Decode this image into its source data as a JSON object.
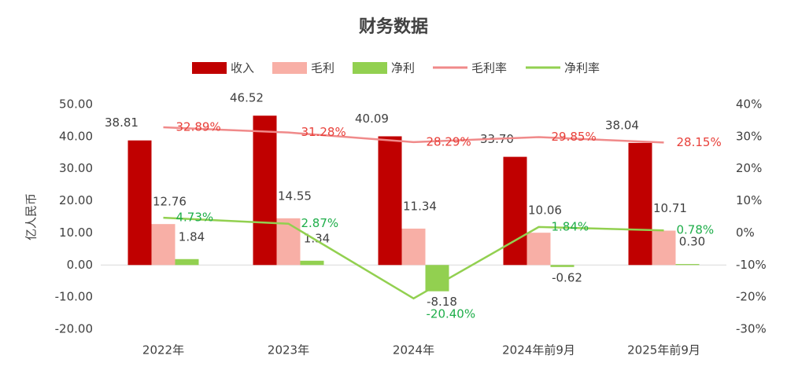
{
  "chart_data": {
    "type": "bar-line",
    "title": "财务数据",
    "y_label": "亿人民币",
    "categories": [
      "2022年",
      "2023年",
      "2024年",
      "2024年前9月",
      "2025年前9月"
    ],
    "series": [
      {
        "name": "收入",
        "type": "bar",
        "color": "#c00000",
        "values": [
          38.81,
          46.52,
          40.09,
          33.7,
          38.04
        ],
        "value_labels": [
          "38.81",
          "46.52",
          "40.09",
          "33.70",
          "38.04"
        ]
      },
      {
        "name": "毛利",
        "type": "bar",
        "color": "#f8afa6",
        "values": [
          12.76,
          14.55,
          11.34,
          10.06,
          10.71
        ],
        "value_labels": [
          "12.76",
          "14.55",
          "11.34",
          "10.06",
          "10.71"
        ]
      },
      {
        "name": "净利",
        "type": "bar",
        "color": "#92d050",
        "values": [
          1.84,
          1.34,
          -8.18,
          -0.62,
          0.3
        ],
        "value_labels": [
          "1.84",
          "1.34",
          "-8.18",
          "-0.62",
          "0.30"
        ]
      },
      {
        "name": "毛利率",
        "type": "line",
        "axis": "y2",
        "color": "#f08a8a",
        "label_color": "#e8403a",
        "values": [
          32.89,
          31.28,
          28.29,
          29.85,
          28.15
        ],
        "value_labels": [
          "32.89%",
          "31.28%",
          "28.29%",
          "29.85%",
          "28.15%"
        ]
      },
      {
        "name": "净利率",
        "type": "line",
        "axis": "y2",
        "color": "#92d050",
        "label_color": "#1fae4a",
        "values": [
          4.73,
          2.87,
          -20.4,
          1.84,
          0.78
        ],
        "value_labels": [
          "4.73%",
          "2.87%",
          "-20.40%",
          "1.84%",
          "0.78%"
        ]
      }
    ],
    "ylim": [
      -20,
      50
    ],
    "yticks": [
      {
        "value": 50,
        "label": "50.00"
      },
      {
        "value": 40,
        "label": "40.00"
      },
      {
        "value": 30,
        "label": "30.00"
      },
      {
        "value": 20,
        "label": "20.00"
      },
      {
        "value": 10,
        "label": "10.00"
      },
      {
        "value": 0,
        "label": "0.00"
      },
      {
        "value": -10,
        "label": "-10.00"
      },
      {
        "value": -20,
        "label": "-20.00"
      }
    ],
    "y2lim": [
      -30,
      40
    ],
    "y2ticks": [
      {
        "value": 40,
        "label": "40%"
      },
      {
        "value": 30,
        "label": "30%"
      },
      {
        "value": 20,
        "label": "20%"
      },
      {
        "value": 10,
        "label": "10%"
      },
      {
        "value": 0,
        "label": "0%"
      },
      {
        "value": -10,
        "label": "-10%"
      },
      {
        "value": -20,
        "label": "-20%"
      },
      {
        "value": -30,
        "label": "-30%"
      }
    ]
  }
}
